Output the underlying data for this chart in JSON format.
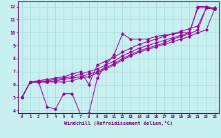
{
  "title": "",
  "xlabel": "Windchill (Refroidissement éolien,°C)",
  "ylabel": "",
  "xlim": [
    -0.5,
    23.5
  ],
  "ylim": [
    3.8,
    12.4
  ],
  "xticks": [
    0,
    1,
    2,
    3,
    4,
    5,
    6,
    7,
    8,
    9,
    10,
    11,
    12,
    13,
    14,
    15,
    16,
    17,
    18,
    19,
    20,
    21,
    22,
    23
  ],
  "yticks": [
    4,
    5,
    6,
    7,
    8,
    9,
    10,
    11,
    12
  ],
  "bg_color": "#c8f0f0",
  "line_color": "#990099",
  "grid_color": "#aadddd",
  "series": [
    [
      5.0,
      6.2,
      6.2,
      4.3,
      4.1,
      5.3,
      5.3,
      3.7,
      3.8,
      6.5,
      7.5,
      8.3,
      9.9,
      9.5,
      9.5,
      9.5,
      9.7,
      9.8,
      9.9,
      10.0,
      10.0,
      12.0,
      12.0,
      11.9
    ],
    [
      5.0,
      6.2,
      6.2,
      6.2,
      6.2,
      6.2,
      6.3,
      6.5,
      6.6,
      6.9,
      7.2,
      7.5,
      7.9,
      8.2,
      8.5,
      8.7,
      8.9,
      9.1,
      9.3,
      9.5,
      9.7,
      10.0,
      10.2,
      11.8
    ],
    [
      5.0,
      6.2,
      6.2,
      6.2,
      6.3,
      6.4,
      6.5,
      6.6,
      6.8,
      7.0,
      7.3,
      7.6,
      8.0,
      8.3,
      8.6,
      8.8,
      9.0,
      9.2,
      9.5,
      9.7,
      9.9,
      10.2,
      11.9,
      11.8
    ],
    [
      5.0,
      6.2,
      6.2,
      6.3,
      6.4,
      6.5,
      6.6,
      6.8,
      7.0,
      7.2,
      7.5,
      7.8,
      8.2,
      8.5,
      8.8,
      9.0,
      9.2,
      9.4,
      9.6,
      9.8,
      10.0,
      11.9,
      11.9,
      11.8
    ],
    [
      5.0,
      6.2,
      6.3,
      6.4,
      6.5,
      6.6,
      6.8,
      7.0,
      6.0,
      7.5,
      7.8,
      8.1,
      8.5,
      8.8,
      9.1,
      9.3,
      9.5,
      9.7,
      9.9,
      10.1,
      10.3,
      10.5,
      11.9,
      11.8
    ]
  ]
}
